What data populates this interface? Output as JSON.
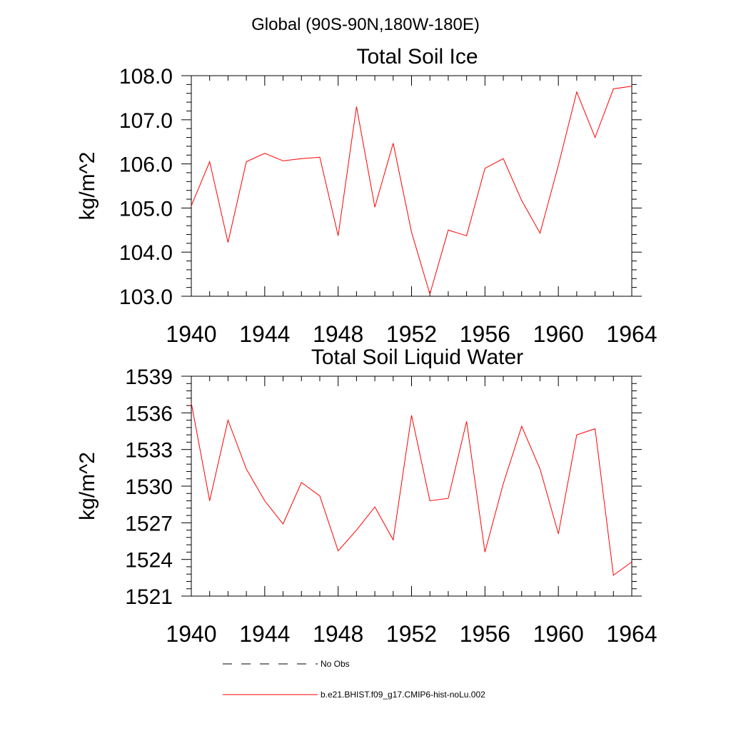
{
  "figure_title": "Global (90S-90N,180W-180E)",
  "colors": {
    "model": "#ff0000",
    "obs": "#000000",
    "axis": "#000000"
  },
  "legend": {
    "obs_label": "No Obs",
    "model_label": "b.e21.BHIST.f09_g17.CMIP6-hist-noLu.002"
  },
  "chart_data": [
    {
      "type": "line",
      "title": "Total Soil Ice",
      "ylabel": "kg/m^2",
      "xlabel": "",
      "xlim": [
        1940,
        1964
      ],
      "ylim": [
        103.0,
        108.0
      ],
      "xticks": [
        1940,
        1944,
        1948,
        1952,
        1956,
        1960,
        1964
      ],
      "xtick_labels": [
        "1940",
        "1944",
        "1948",
        "1952",
        "1956",
        "1960",
        "1964"
      ],
      "yticks": [
        103.0,
        104.0,
        105.0,
        106.0,
        107.0,
        108.0
      ],
      "ytick_labels": [
        "103.0",
        "104.0",
        "105.0",
        "106.0",
        "107.0",
        "108.0"
      ],
      "grid": false,
      "series": [
        {
          "name": "b.e21.BHIST.f09_g17.CMIP6-hist-noLu.002",
          "x": [
            1940,
            1941,
            1942,
            1943,
            1944,
            1945,
            1946,
            1947,
            1948,
            1949,
            1950,
            1951,
            1952,
            1953,
            1954,
            1955,
            1956,
            1957,
            1958,
            1959,
            1960,
            1961,
            1962,
            1963,
            1964
          ],
          "y": [
            105.05,
            106.05,
            104.22,
            106.05,
            106.24,
            106.07,
            106.12,
            106.15,
            104.37,
            107.3,
            105.02,
            106.47,
            104.45,
            103.05,
            104.5,
            104.37,
            105.9,
            106.12,
            105.17,
            104.43,
            105.97,
            107.63,
            106.6,
            107.7,
            107.76
          ]
        }
      ]
    },
    {
      "type": "line",
      "title": "Total Soil Liquid Water",
      "ylabel": "kg/m^2",
      "xlabel": "",
      "xlim": [
        1940,
        1964
      ],
      "ylim": [
        1521,
        1539
      ],
      "xticks": [
        1940,
        1944,
        1948,
        1952,
        1956,
        1960,
        1964
      ],
      "xtick_labels": [
        "1940",
        "1944",
        "1948",
        "1952",
        "1956",
        "1960",
        "1964"
      ],
      "yticks": [
        1521,
        1524,
        1527,
        1530,
        1533,
        1536,
        1539
      ],
      "ytick_labels": [
        "1521",
        "1524",
        "1527",
        "1530",
        "1533",
        "1536",
        "1539"
      ],
      "grid": false,
      "series": [
        {
          "name": "b.e21.BHIST.f09_g17.CMIP6-hist-noLu.002",
          "x": [
            1940,
            1941,
            1942,
            1943,
            1944,
            1945,
            1946,
            1947,
            1948,
            1949,
            1950,
            1951,
            1952,
            1953,
            1954,
            1955,
            1956,
            1957,
            1958,
            1959,
            1960,
            1961,
            1962,
            1963,
            1964
          ],
          "y": [
            1536.8,
            1528.8,
            1535.4,
            1531.4,
            1528.8,
            1526.9,
            1530.3,
            1529.2,
            1524.7,
            1526.4,
            1528.3,
            1525.6,
            1535.8,
            1528.8,
            1529.0,
            1535.3,
            1524.6,
            1530.2,
            1534.9,
            1531.4,
            1526.1,
            1534.2,
            1534.7,
            1522.7,
            1523.8
          ]
        }
      ]
    }
  ]
}
